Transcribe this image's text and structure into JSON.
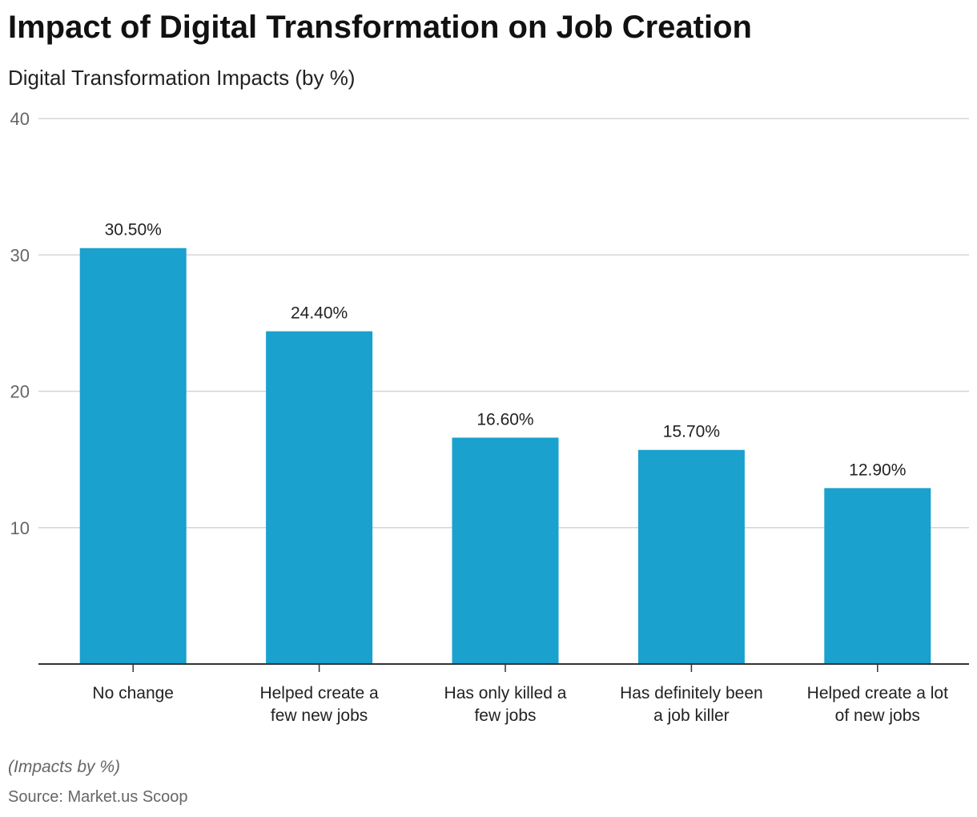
{
  "title": "Impact of Digital Transformation on Job Creation",
  "subtitle": "Digital Transformation Impacts (by %)",
  "note": "(Impacts by %)",
  "source": "Source: Market.us Scoop",
  "chart_data": {
    "type": "bar",
    "categories": [
      [
        "No change"
      ],
      [
        "Helped create a",
        "few new jobs"
      ],
      [
        "Has only killed a",
        "few jobs"
      ],
      [
        "Has definitely been",
        "a job killer"
      ],
      [
        "Helped create a lot",
        "of new jobs"
      ]
    ],
    "values": [
      30.5,
      24.4,
      16.6,
      15.7,
      12.9
    ],
    "data_labels": [
      "30.50%",
      "24.40%",
      "16.60%",
      "15.70%",
      "12.90%"
    ],
    "yticks": [
      10,
      20,
      30,
      40
    ],
    "ylim": [
      0,
      40
    ],
    "grid": true,
    "bar_color": "#1aa1cd"
  }
}
